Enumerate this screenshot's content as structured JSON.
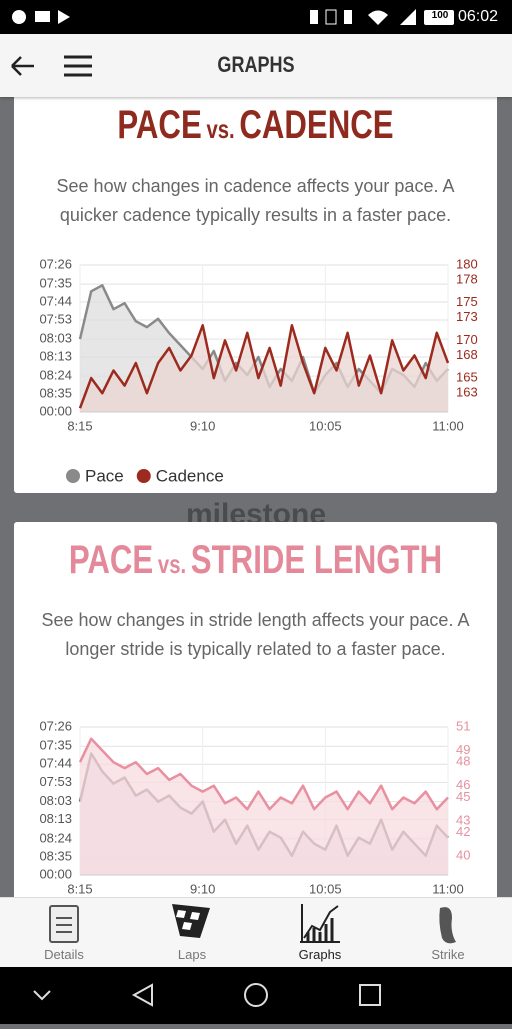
{
  "status_bar": {
    "time": "06:02",
    "battery": "100"
  },
  "header": {
    "title": "GRAPHS"
  },
  "background_logo": "milestone",
  "cards": [
    {
      "title": [
        "PACE",
        "vs.",
        "CADENCE"
      ],
      "description": "See how changes in cadence affects your pace. A quicker cadence typically results in a faster pace."
    },
    {
      "title": [
        "PACE",
        "vs.",
        "STRIDE LENGTH"
      ],
      "description": "See how changes in stride length affects your pace. A longer stride is typically related to a faster pace."
    }
  ],
  "chart_data": [
    {
      "type": "area",
      "x": [
        495,
        500,
        505,
        510,
        515,
        520,
        525,
        530,
        535,
        540,
        545,
        550,
        555,
        560,
        565,
        570,
        575,
        580,
        585,
        590,
        595,
        600,
        605,
        610,
        615,
        620,
        625,
        630,
        635,
        640,
        645,
        650,
        655,
        660
      ],
      "xlim": [
        495,
        660
      ],
      "xticks": [
        {
          "value": 495,
          "label": "8:15"
        },
        {
          "value": 550,
          "label": "9:10"
        },
        {
          "value": 605,
          "label": "10:05"
        },
        {
          "value": 660,
          "label": "11:00"
        }
      ],
      "ylim": [
        6.84,
        8.07
      ],
      "yticks": [
        {
          "value": 8.07,
          "label": "07:26"
        },
        {
          "value": 7.91,
          "label": "07:35"
        },
        {
          "value": 7.76,
          "label": "07:44"
        },
        {
          "value": 7.61,
          "label": "07:53"
        },
        {
          "value": 7.45,
          "label": "08:03"
        },
        {
          "value": 7.3,
          "label": "08:13"
        },
        {
          "value": 7.14,
          "label": "08:24"
        },
        {
          "value": 6.99,
          "label": "08:35"
        },
        {
          "value": 6.84,
          "label": "00:00"
        }
      ],
      "y2lim": [
        160.5,
        180
      ],
      "y2ticks": [
        180,
        178,
        175,
        173,
        170,
        168,
        165,
        163
      ],
      "grid": true,
      "legend": true,
      "series": [
        {
          "name": "Pace",
          "color": "#8a8a8a",
          "fill": "#dedede",
          "values": [
            7.45,
            7.85,
            7.9,
            7.7,
            7.75,
            7.6,
            7.55,
            7.62,
            7.5,
            7.4,
            7.3,
            7.2,
            7.35,
            7.1,
            7.25,
            7.15,
            7.3,
            7.05,
            7.2,
            7.1,
            7.3,
            7.0,
            7.15,
            7.25,
            7.05,
            7.2,
            7.1,
            7.0,
            7.2,
            7.15,
            7.05,
            7.25,
            7.1,
            7.2
          ]
        },
        {
          "name": "Cadence",
          "color": "#9c2a1e",
          "fill": "#ead5d1",
          "axis": "y2",
          "values": [
            161,
            165,
            163,
            166,
            164,
            167,
            163,
            167,
            169,
            166,
            168,
            172,
            165,
            170,
            166,
            171,
            165,
            169,
            164,
            172,
            167,
            163,
            169,
            166,
            171,
            164,
            168,
            163,
            170,
            166,
            168,
            165,
            171,
            167
          ]
        }
      ]
    },
    {
      "type": "area",
      "x": [
        495,
        500,
        505,
        510,
        515,
        520,
        525,
        530,
        535,
        540,
        545,
        550,
        555,
        560,
        565,
        570,
        575,
        580,
        585,
        590,
        595,
        600,
        605,
        610,
        615,
        620,
        625,
        630,
        635,
        640,
        645,
        650,
        655,
        660
      ],
      "xlim": [
        495,
        660
      ],
      "xticks": [
        {
          "value": 495,
          "label": "8:15"
        },
        {
          "value": 550,
          "label": "9:10"
        },
        {
          "value": 605,
          "label": "10:05"
        },
        {
          "value": 660,
          "label": "11:00"
        }
      ],
      "ylim": [
        6.84,
        8.07
      ],
      "yticks": [
        {
          "value": 8.07,
          "label": "07:26"
        },
        {
          "value": 7.91,
          "label": "07:35"
        },
        {
          "value": 7.76,
          "label": "07:44"
        },
        {
          "value": 7.61,
          "label": "07:53"
        },
        {
          "value": 7.45,
          "label": "08:03"
        },
        {
          "value": 7.3,
          "label": "08:13"
        },
        {
          "value": 7.14,
          "label": "08:24"
        },
        {
          "value": 6.99,
          "label": "08:35"
        },
        {
          "value": 6.84,
          "label": "00:00"
        }
      ],
      "y2lim": [
        38.4,
        51
      ],
      "y2ticks": [
        51,
        49,
        48,
        46,
        45,
        43,
        42,
        40
      ],
      "grid": true,
      "legend": false,
      "series": [
        {
          "color": "#7d6b70",
          "fill": "#e9dfe1",
          "values": [
            7.45,
            7.85,
            7.7,
            7.6,
            7.65,
            7.5,
            7.55,
            7.45,
            7.5,
            7.4,
            7.35,
            7.45,
            7.2,
            7.3,
            7.1,
            7.25,
            7.05,
            7.2,
            7.15,
            7.0,
            7.2,
            7.1,
            7.05,
            7.25,
            7.0,
            7.15,
            7.1,
            7.3,
            7.05,
            7.2,
            7.1,
            7.0,
            7.25,
            7.15
          ]
        },
        {
          "color": "#e8909f",
          "fill": "#f7dbe0",
          "axis": "y2",
          "values": [
            48,
            50,
            49,
            48,
            47.5,
            48,
            47,
            47.5,
            46.5,
            47,
            46,
            45.5,
            46,
            44.5,
            45,
            44,
            45.5,
            44,
            45,
            44.5,
            46,
            44,
            45,
            45.5,
            44,
            45.5,
            44.5,
            46,
            44,
            45,
            44.5,
            45.5,
            44,
            45
          ]
        }
      ]
    }
  ],
  "tabs": [
    "Details",
    "Laps",
    "Graphs",
    "Strike"
  ]
}
